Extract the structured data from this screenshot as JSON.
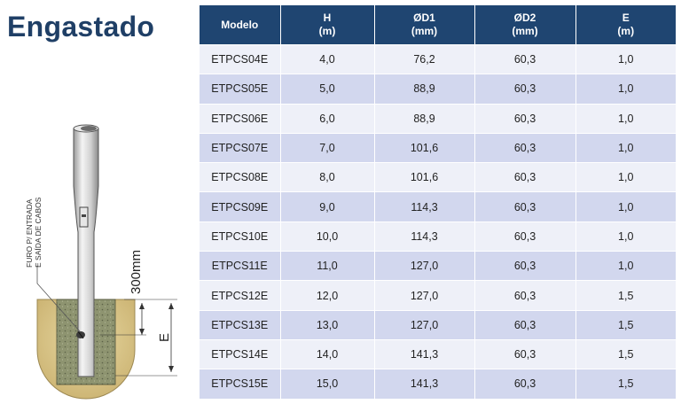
{
  "title": "Engastado",
  "diagram": {
    "label_line1": "FURO P/ ENTRADA",
    "label_line2": "E SAÍDA DE CABOS",
    "depth_label": "300mm",
    "e_label": "E"
  },
  "table": {
    "headers": [
      {
        "line1": "Modelo",
        "line2": ""
      },
      {
        "line1": "H",
        "line2": "(m)"
      },
      {
        "line1": "ØD1",
        "line2": "(mm)"
      },
      {
        "line1": "ØD2",
        "line2": "(mm)"
      },
      {
        "line1": "E",
        "line2": "(m)"
      }
    ],
    "rows": [
      [
        "ETPCS04E",
        "4,0",
        "76,2",
        "60,3",
        "1,0"
      ],
      [
        "ETPCS05E",
        "5,0",
        "88,9",
        "60,3",
        "1,0"
      ],
      [
        "ETPCS06E",
        "6,0",
        "88,9",
        "60,3",
        "1,0"
      ],
      [
        "ETPCS07E",
        "7,0",
        "101,6",
        "60,3",
        "1,0"
      ],
      [
        "ETPCS08E",
        "8,0",
        "101,6",
        "60,3",
        "1,0"
      ],
      [
        "ETPCS09E",
        "9,0",
        "114,3",
        "60,3",
        "1,0"
      ],
      [
        "ETPCS10E",
        "10,0",
        "114,3",
        "60,3",
        "1,0"
      ],
      [
        "ETPCS11E",
        "11,0",
        "127,0",
        "60,3",
        "1,0"
      ],
      [
        "ETPCS12E",
        "12,0",
        "127,0",
        "60,3",
        "1,5"
      ],
      [
        "ETPCS13E",
        "13,0",
        "127,0",
        "60,3",
        "1,5"
      ],
      [
        "ETPCS14E",
        "14,0",
        "141,3",
        "60,3",
        "1,5"
      ],
      [
        "ETPCS15E",
        "15,0",
        "141,3",
        "60,3",
        "1,5"
      ]
    ]
  }
}
